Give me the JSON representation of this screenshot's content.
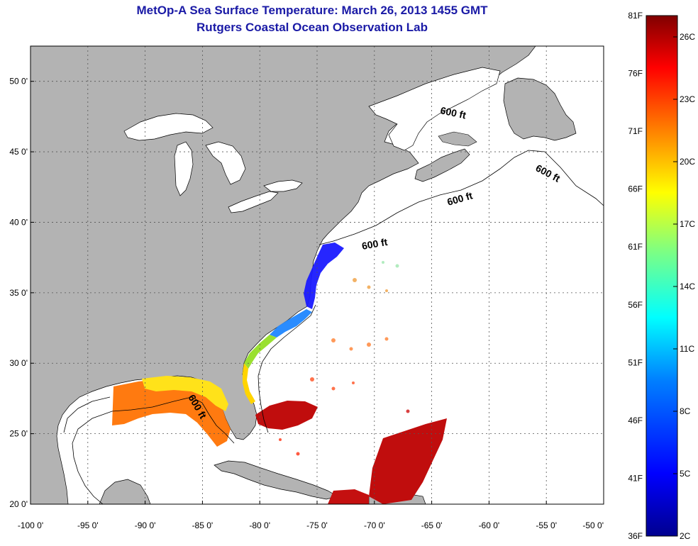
{
  "header": {
    "title": "MetOp-A Sea Surface Temperature:  March 26, 2013 1455 GMT",
    "subtitle": "Rutgers Coastal Ocean Observation Lab"
  },
  "map": {
    "lon_range": [
      -100,
      -50
    ],
    "lat_range": [
      20,
      52.5
    ],
    "grid": true,
    "lon_ticks": [
      {
        "value": -100,
        "label": "-100 0'"
      },
      {
        "value": -95,
        "label": "-95 0'"
      },
      {
        "value": -90,
        "label": "-90 0'"
      },
      {
        "value": -85,
        "label": "-85 0'"
      },
      {
        "value": -80,
        "label": "-80 0'"
      },
      {
        "value": -75,
        "label": "-75 0'"
      },
      {
        "value": -70,
        "label": "-70 0'"
      },
      {
        "value": -65,
        "label": "-65 0'"
      },
      {
        "value": -60,
        "label": "-60 0'"
      },
      {
        "value": -55,
        "label": "-55 0'"
      },
      {
        "value": -50,
        "label": "-50 0'"
      }
    ],
    "lat_ticks": [
      {
        "value": 50,
        "label": "50 0'"
      },
      {
        "value": 45,
        "label": "45 0'"
      },
      {
        "value": 40,
        "label": "40 0'"
      },
      {
        "value": 35,
        "label": "35 0'"
      },
      {
        "value": 30,
        "label": "30 0'"
      },
      {
        "value": 25,
        "label": "25 0'"
      },
      {
        "value": 20,
        "label": "20 0'"
      }
    ],
    "contour_labels": [
      "600 ft",
      "600 ft",
      "600 ft",
      "600 ft",
      "600 ft"
    ],
    "colors": {
      "land": "#b3b3b3",
      "ocean": "#ffffff",
      "grid": "#555555"
    }
  },
  "colorbar": {
    "fahrenheit_labels": [
      "81F",
      "76F",
      "71F",
      "66F",
      "61F",
      "56F",
      "51F",
      "46F",
      "41F",
      "36F"
    ],
    "celsius_labels": [
      "26C",
      "23C",
      "20C",
      "17C",
      "14C",
      "11C",
      "8C",
      "5C",
      "2C"
    ],
    "colormap": "jet",
    "colors": [
      "#00008f",
      "#0000ff",
      "#0080ff",
      "#00ffff",
      "#80ff80",
      "#ffff00",
      "#ff8000",
      "#ff0000",
      "#800000"
    ]
  }
}
